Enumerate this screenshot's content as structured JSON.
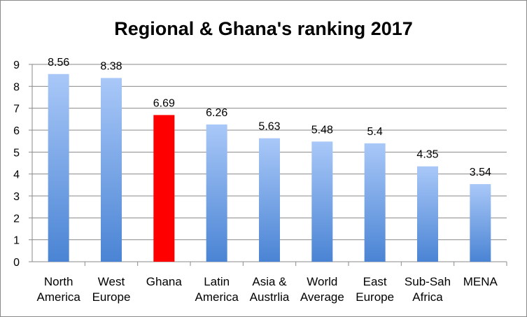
{
  "chart_data": {
    "type": "bar",
    "title": "Regional & Ghana's ranking  2017",
    "categories": [
      [
        "North",
        "America"
      ],
      [
        "West",
        "Europe"
      ],
      [
        "Ghana"
      ],
      [
        "Latin",
        "America"
      ],
      [
        "Asia &",
        "Austrlia"
      ],
      [
        "World",
        "Average"
      ],
      [
        "East",
        "Europe"
      ],
      [
        "Sub-Sah",
        "Africa"
      ],
      [
        "MENA"
      ]
    ],
    "values": [
      8.56,
      8.38,
      6.69,
      6.26,
      5.63,
      5.48,
      5.4,
      4.35,
      3.54
    ],
    "data_labels": [
      "8.56",
      "8.38",
      "6.69",
      "6.26",
      "5.63",
      "5.48",
      "5.4",
      "4.35",
      "3.54"
    ],
    "highlight_index": 2,
    "ylim": [
      0,
      9
    ],
    "yticks": [
      "0",
      "1",
      "2",
      "3",
      "4",
      "5",
      "6",
      "7",
      "8",
      "9"
    ],
    "grid": true,
    "legend": "none",
    "colors": {
      "bar_top": "#a9c8f8",
      "bar_bottom": "#4a84d4",
      "highlight": "#ff0000",
      "grid": "#8a8a8a"
    }
  }
}
